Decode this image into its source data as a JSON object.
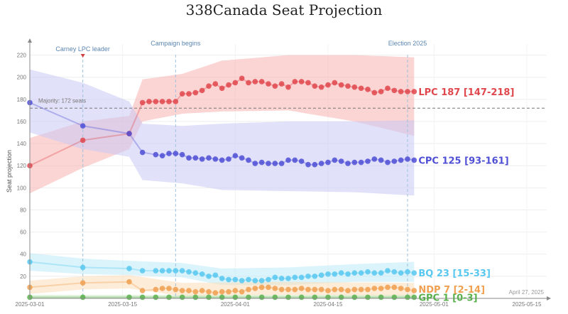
{
  "chart_data": {
    "type": "line",
    "title": "338Canada Seat Projection",
    "ylabel": "Seat projection",
    "ylim": [
      0,
      230
    ],
    "yticks": [
      20,
      40,
      60,
      80,
      100,
      120,
      140,
      160,
      180,
      200,
      220
    ],
    "xlim": [
      "2025-03-01",
      "2025-05-18"
    ],
    "xticks": [
      "2025-03-01",
      "2025-03-15",
      "2025-04-01",
      "2025-04-15",
      "2025-05-01",
      "2025-05-15"
    ],
    "majority": {
      "label": "Majority: 172 seats",
      "value": 172
    },
    "annotations": [
      {
        "date": "2025-03-09",
        "label": "Carney LPC leader"
      },
      {
        "date": "2025-03-23",
        "label": "Campaign begins"
      },
      {
        "date": "2025-04-27",
        "label": "Election 2025"
      }
    ],
    "date_stamp": "April 27, 2025",
    "series": [
      {
        "name": "LPC",
        "end_label": "LPC 187 [147-218]",
        "color": "#e0474c",
        "band_color": "#f7b0b0",
        "values": [
          [
            1,
            120
          ],
          [
            9,
            143
          ],
          [
            16,
            149
          ],
          [
            18,
            177
          ],
          [
            19,
            178
          ],
          [
            20,
            178
          ],
          [
            21,
            178
          ],
          [
            22,
            178
          ],
          [
            23,
            178
          ],
          [
            24,
            185
          ],
          [
            25,
            185
          ],
          [
            26,
            186
          ],
          [
            27,
            188
          ],
          [
            28,
            192
          ],
          [
            29,
            194
          ],
          [
            30,
            190
          ],
          [
            31,
            193
          ],
          [
            32,
            195
          ],
          [
            33,
            199
          ],
          [
            34,
            195
          ],
          [
            35,
            196
          ],
          [
            36,
            196
          ],
          [
            37,
            194
          ],
          [
            38,
            192
          ],
          [
            39,
            194
          ],
          [
            40,
            191
          ],
          [
            41,
            196
          ],
          [
            42,
            196
          ],
          [
            43,
            195
          ],
          [
            44,
            192
          ],
          [
            45,
            191
          ],
          [
            46,
            193
          ],
          [
            47,
            195
          ],
          [
            48,
            193
          ],
          [
            49,
            192
          ],
          [
            50,
            191
          ],
          [
            51,
            190
          ],
          [
            52,
            189
          ],
          [
            53,
            186
          ],
          [
            54,
            187
          ],
          [
            55,
            190
          ],
          [
            56,
            188
          ],
          [
            57,
            187
          ],
          [
            58,
            187
          ],
          [
            59,
            187
          ]
        ],
        "low": [
          [
            1,
            95
          ],
          [
            9,
            118
          ],
          [
            16,
            135
          ],
          [
            18,
            160
          ],
          [
            24,
            167
          ],
          [
            30,
            169
          ],
          [
            40,
            170
          ],
          [
            50,
            160
          ],
          [
            59,
            147
          ]
        ],
        "high": [
          [
            1,
            145
          ],
          [
            9,
            160
          ],
          [
            16,
            165
          ],
          [
            18,
            198
          ],
          [
            24,
            203
          ],
          [
            30,
            215
          ],
          [
            40,
            220
          ],
          [
            50,
            220
          ],
          [
            59,
            218
          ]
        ]
      },
      {
        "name": "CPC",
        "end_label": "CPC 125 [93-161]",
        "color": "#4f4fd6",
        "band_color": "#c9c9f4",
        "values": [
          [
            1,
            177
          ],
          [
            9,
            156
          ],
          [
            16,
            149
          ],
          [
            18,
            132
          ],
          [
            20,
            130
          ],
          [
            21,
            129
          ],
          [
            22,
            131
          ],
          [
            23,
            131
          ],
          [
            24,
            130
          ],
          [
            25,
            127
          ],
          [
            26,
            127
          ],
          [
            27,
            126
          ],
          [
            28,
            127
          ],
          [
            29,
            126
          ],
          [
            30,
            125
          ],
          [
            31,
            126
          ],
          [
            32,
            129
          ],
          [
            33,
            127
          ],
          [
            34,
            125
          ],
          [
            35,
            122
          ],
          [
            36,
            123
          ],
          [
            37,
            122
          ],
          [
            38,
            122
          ],
          [
            39,
            122
          ],
          [
            40,
            125
          ],
          [
            41,
            125
          ],
          [
            42,
            124
          ],
          [
            43,
            121
          ],
          [
            44,
            121
          ],
          [
            45,
            122
          ],
          [
            46,
            123
          ],
          [
            47,
            125
          ],
          [
            48,
            124
          ],
          [
            49,
            122
          ],
          [
            50,
            123
          ],
          [
            51,
            123
          ],
          [
            52,
            124
          ],
          [
            53,
            126
          ],
          [
            54,
            125
          ],
          [
            55,
            123
          ],
          [
            56,
            124
          ],
          [
            57,
            125
          ],
          [
            58,
            126
          ],
          [
            59,
            125
          ]
        ],
        "low": [
          [
            1,
            150
          ],
          [
            9,
            135
          ],
          [
            16,
            128
          ],
          [
            18,
            107
          ],
          [
            24,
            104
          ],
          [
            30,
            98
          ],
          [
            40,
            97
          ],
          [
            50,
            96
          ],
          [
            59,
            93
          ]
        ],
        "high": [
          [
            1,
            207
          ],
          [
            9,
            195
          ],
          [
            16,
            178
          ],
          [
            18,
            158
          ],
          [
            24,
            156
          ],
          [
            30,
            158
          ],
          [
            40,
            160
          ],
          [
            50,
            160
          ],
          [
            59,
            161
          ]
        ]
      },
      {
        "name": "BQ",
        "end_label": "BQ 23 [15-33]",
        "color": "#58c8f0",
        "band_color": "#bdebfa",
        "values": [
          [
            1,
            33
          ],
          [
            9,
            28
          ],
          [
            16,
            27
          ],
          [
            18,
            25
          ],
          [
            20,
            25
          ],
          [
            21,
            25
          ],
          [
            22,
            25
          ],
          [
            23,
            25
          ],
          [
            24,
            25
          ],
          [
            25,
            24
          ],
          [
            26,
            23
          ],
          [
            27,
            22
          ],
          [
            28,
            20
          ],
          [
            29,
            21
          ],
          [
            30,
            18
          ],
          [
            31,
            17
          ],
          [
            32,
            17
          ],
          [
            33,
            16
          ],
          [
            34,
            17
          ],
          [
            35,
            16
          ],
          [
            36,
            16
          ],
          [
            37,
            17
          ],
          [
            38,
            19
          ],
          [
            39,
            18
          ],
          [
            40,
            18
          ],
          [
            41,
            19
          ],
          [
            42,
            19
          ],
          [
            43,
            20
          ],
          [
            44,
            20
          ],
          [
            45,
            21
          ],
          [
            46,
            22
          ],
          [
            47,
            22
          ],
          [
            48,
            23
          ],
          [
            49,
            22
          ],
          [
            50,
            23
          ],
          [
            51,
            23
          ],
          [
            52,
            24
          ],
          [
            53,
            23
          ],
          [
            54,
            23
          ],
          [
            55,
            25
          ],
          [
            56,
            24
          ],
          [
            57,
            23
          ],
          [
            58,
            24
          ],
          [
            59,
            23
          ]
        ],
        "low": [
          [
            1,
            25
          ],
          [
            9,
            22
          ],
          [
            16,
            21
          ],
          [
            24,
            19
          ],
          [
            30,
            12
          ],
          [
            40,
            12
          ],
          [
            50,
            15
          ],
          [
            59,
            15
          ]
        ],
        "high": [
          [
            1,
            41
          ],
          [
            9,
            36
          ],
          [
            16,
            34
          ],
          [
            24,
            32
          ],
          [
            30,
            27
          ],
          [
            40,
            28
          ],
          [
            50,
            31
          ],
          [
            59,
            33
          ]
        ]
      },
      {
        "name": "NDP",
        "end_label": "NDP 7 [2-14]",
        "color": "#f0a050",
        "band_color": "#fbdcb6",
        "values": [
          [
            1,
            10
          ],
          [
            9,
            14
          ],
          [
            16,
            15
          ],
          [
            18,
            7
          ],
          [
            20,
            8
          ],
          [
            21,
            9
          ],
          [
            22,
            9
          ],
          [
            23,
            8
          ],
          [
            24,
            7
          ],
          [
            25,
            7
          ],
          [
            26,
            6
          ],
          [
            27,
            7
          ],
          [
            28,
            6
          ],
          [
            29,
            5
          ],
          [
            30,
            6
          ],
          [
            31,
            6
          ],
          [
            32,
            7
          ],
          [
            33,
            6
          ],
          [
            34,
            8
          ],
          [
            35,
            9
          ],
          [
            36,
            10
          ],
          [
            37,
            10
          ],
          [
            38,
            9
          ],
          [
            39,
            8
          ],
          [
            40,
            8
          ],
          [
            41,
            8
          ],
          [
            42,
            9
          ],
          [
            43,
            8
          ],
          [
            44,
            8
          ],
          [
            45,
            8
          ],
          [
            46,
            7
          ],
          [
            47,
            8
          ],
          [
            48,
            8
          ],
          [
            49,
            7
          ],
          [
            50,
            8
          ],
          [
            51,
            8
          ],
          [
            52,
            8
          ],
          [
            53,
            9
          ],
          [
            54,
            9
          ],
          [
            55,
            10
          ],
          [
            56,
            10
          ],
          [
            57,
            9
          ],
          [
            58,
            8
          ],
          [
            59,
            7
          ]
        ],
        "low": [
          [
            1,
            4
          ],
          [
            9,
            8
          ],
          [
            16,
            9
          ],
          [
            24,
            2
          ],
          [
            40,
            3
          ],
          [
            59,
            2
          ]
        ],
        "high": [
          [
            1,
            16
          ],
          [
            9,
            20
          ],
          [
            16,
            21
          ],
          [
            24,
            14
          ],
          [
            40,
            15
          ],
          [
            59,
            14
          ]
        ]
      },
      {
        "name": "GPC",
        "end_label": "GPC 1 [0-3]",
        "color": "#5ab04e",
        "band_color": "#c6e8c0",
        "values": [
          [
            1,
            1
          ],
          [
            9,
            1
          ],
          [
            16,
            1
          ],
          [
            18,
            1
          ],
          [
            20,
            1
          ],
          [
            22,
            1
          ],
          [
            24,
            1
          ],
          [
            26,
            1
          ],
          [
            28,
            1
          ],
          [
            30,
            1
          ],
          [
            32,
            1
          ],
          [
            34,
            1
          ],
          [
            36,
            1
          ],
          [
            38,
            1
          ],
          [
            40,
            1
          ],
          [
            42,
            1
          ],
          [
            44,
            1
          ],
          [
            46,
            1
          ],
          [
            48,
            1
          ],
          [
            50,
            1
          ],
          [
            52,
            1
          ],
          [
            54,
            1
          ],
          [
            56,
            1
          ],
          [
            58,
            1
          ],
          [
            59,
            1
          ]
        ],
        "low": [
          [
            1,
            0
          ],
          [
            59,
            0
          ]
        ],
        "high": [
          [
            1,
            3
          ],
          [
            59,
            3
          ]
        ]
      }
    ]
  }
}
